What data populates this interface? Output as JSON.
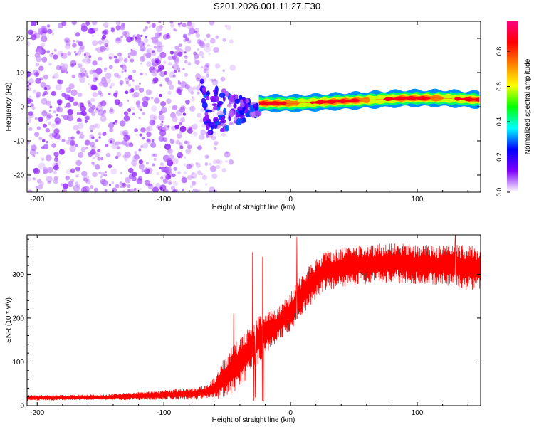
{
  "figure_title": "S201.2026.001.11.27.E30",
  "chart_data": [
    {
      "type": "heatmap",
      "title": "S201.2026.001.11.27.E30",
      "xlabel": "Height of straight line (km)",
      "ylabel": "Frequency (Hz)",
      "xlim": [
        -208,
        150
      ],
      "ylim": [
        -25,
        25
      ],
      "xticks": [
        -200,
        -100,
        0,
        100
      ],
      "yticks": [
        -20,
        -10,
        0,
        10,
        20
      ],
      "colorbar": {
        "label": "Normalized spectral amplitude",
        "range": [
          0,
          0.97
        ],
        "ticks": [
          0.0,
          0.2,
          0.4,
          0.6,
          0.8
        ],
        "tick_labels": [
          "0.0",
          "0.2",
          "0.4",
          "0.6",
          "0.8"
        ],
        "colors": [
          "#ffffff",
          "#8000ff",
          "#0000ff",
          "#00ffff",
          "#00ff00",
          "#ffff00",
          "#ff8000",
          "#ff0000",
          "#ff0080"
        ]
      },
      "regions": [
        {
          "name": "noise",
          "x_range": [
            -208,
            -70
          ],
          "freq_range": [
            -25,
            25
          ],
          "amplitude": [
            0.0,
            0.1
          ]
        },
        {
          "name": "transition",
          "x_range": [
            -70,
            -25
          ],
          "freq_range": [
            -8,
            6
          ],
          "amplitude": [
            0.05,
            0.3
          ]
        },
        {
          "name": "carrier",
          "x_range": [
            -25,
            150
          ],
          "center_freq": [
            1,
            1,
            1.5,
            2,
            2.5,
            2.5,
            2
          ],
          "amplitude": [
            0.3,
            0.97
          ]
        }
      ]
    },
    {
      "type": "line",
      "xlabel": "Height of straight line (km)",
      "ylabel": "SNR (10 * v/v)",
      "xlim": [
        -208,
        150
      ],
      "ylim": [
        0,
        390
      ],
      "xticks": [
        -200,
        -100,
        0,
        100
      ],
      "yticks": [
        0,
        100,
        200,
        300
      ],
      "series": [
        {
          "name": "SNR",
          "color": "#ff0000",
          "x": [
            -208,
            -190,
            -170,
            -150,
            -130,
            -110,
            -90,
            -75,
            -65,
            -60,
            -55,
            -50,
            -45,
            -40,
            -35,
            -30,
            -25,
            -20,
            -15,
            -10,
            -5,
            0,
            5,
            10,
            15,
            20,
            25,
            30,
            40,
            50,
            60,
            70,
            80,
            90,
            100,
            110,
            120,
            130,
            140,
            150
          ],
          "y": [
            18,
            18,
            19,
            19,
            21,
            23,
            26,
            28,
            32,
            40,
            55,
            70,
            85,
            100,
            115,
            135,
            150,
            165,
            175,
            185,
            200,
            215,
            235,
            255,
            275,
            290,
            305,
            310,
            315,
            320,
            322,
            325,
            325,
            325,
            322,
            322,
            320,
            318,
            315,
            315
          ],
          "band": [
            6,
            6,
            6,
            6,
            8,
            10,
            12,
            14,
            15,
            25,
            40,
            50,
            55,
            55,
            55,
            55,
            55,
            50,
            45,
            40,
            40,
            45,
            50,
            50,
            50,
            45,
            45,
            45,
            45,
            45,
            45,
            45,
            45,
            45,
            45,
            45,
            45,
            50,
            50,
            50
          ]
        }
      ],
      "spikes": [
        {
          "x": -45,
          "y": 210
        },
        {
          "x": -30,
          "y": 350
        },
        {
          "x": -22,
          "y": 340
        },
        {
          "x": 5,
          "y": 385
        },
        {
          "x": 130,
          "y": 390
        }
      ]
    }
  ]
}
